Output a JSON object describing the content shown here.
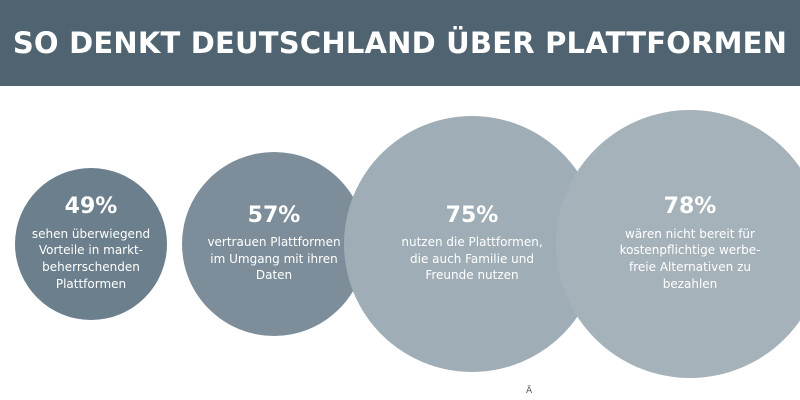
{
  "header": {
    "title": "SO DENKT DEUTSCHLAND ÜBER PLATTFORMEN"
  },
  "colors": {
    "banner": "#4f6371",
    "bubble_1": "#6b7f8c",
    "bubble_2": "#7d8e9a",
    "bubble_3": "#9eadb6",
    "bubble_4": "#a6b2ba"
  },
  "chart_data": {
    "type": "bubble",
    "title": "SO DENKT DEUTSCHLAND ÜBER PLATTFORMEN",
    "values": [
      49,
      57,
      75,
      78
    ],
    "unit": "%",
    "items": [
      {
        "value_label": "49%",
        "lines": [
          "sehen überwiegend",
          "Vorteile in markt-",
          "beherrschenden",
          "Plattformen"
        ]
      },
      {
        "value_label": "57%",
        "lines": [
          "vertrauen Plattformen",
          "im Umgang mit ihren",
          "Daten"
        ]
      },
      {
        "value_label": "75%",
        "lines": [
          "nutzen die Plattformen,",
          "die auch Familie und",
          "Freunde nutzen"
        ]
      },
      {
        "value_label": "78%",
        "lines": [
          "wären nicht bereit für",
          "kostenpflichtige werbe-",
          "freie Alternativen zu",
          "bezahlen"
        ]
      }
    ]
  },
  "footer": {
    "mark": "Ä"
  }
}
